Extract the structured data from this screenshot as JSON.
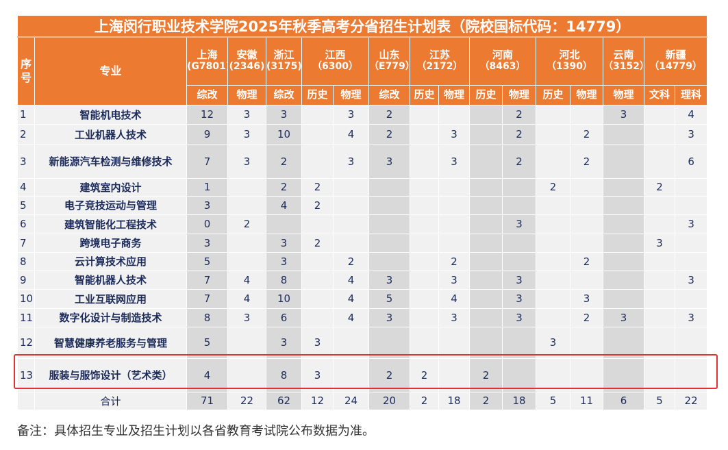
{
  "title": "上海闵行职业技术学院2025年秋季高考分省招生计划表（院校国标代码：14779）",
  "headers": {
    "index": "序号",
    "major": "专业"
  },
  "provinces": [
    {
      "name": "上海",
      "code": "(G7801)",
      "subjects": [
        "综改"
      ]
    },
    {
      "name": "安徽",
      "code": "(2346)",
      "subjects": [
        "物理"
      ]
    },
    {
      "name": "浙江",
      "code": "(3175)",
      "subjects": [
        "综改"
      ]
    },
    {
      "name": "江西",
      "code": "（6300）",
      "subjects": [
        "历史",
        "物理"
      ]
    },
    {
      "name": "山东",
      "code": "（E779）",
      "subjects": [
        "综改"
      ]
    },
    {
      "name": "江苏",
      "code": "（2172）",
      "subjects": [
        "历史",
        "物理"
      ]
    },
    {
      "name": "河南",
      "code": "（8463）",
      "subjects": [
        "历史",
        "物理"
      ]
    },
    {
      "name": "河北",
      "code": "（1390）",
      "subjects": [
        "历史",
        "物理"
      ]
    },
    {
      "name": "云南",
      "code": "（3152）",
      "subjects": [
        "物理"
      ]
    },
    {
      "name": "新疆",
      "code": "（14779）",
      "subjects": [
        "文科",
        "理科"
      ]
    }
  ],
  "rows": [
    {
      "no": "1",
      "major": "智能机电技术",
      "values": [
        "12",
        "3",
        "3",
        "",
        "3",
        "2",
        "",
        "",
        "",
        "2",
        "",
        "",
        "3",
        "",
        "4"
      ]
    },
    {
      "no": "2",
      "major": "工业机器人技术",
      "values": [
        "9",
        "3",
        "10",
        "",
        "4",
        "2",
        "",
        "3",
        "",
        "2",
        "",
        "2",
        "",
        "",
        "3"
      ]
    },
    {
      "no": "3",
      "major": "新能源汽车检测与维修技术",
      "values": [
        "7",
        "3",
        "2",
        "",
        "3",
        "3",
        "",
        "3",
        "",
        "2",
        "",
        "2",
        "",
        "",
        "6"
      ]
    },
    {
      "no": "4",
      "major": "建筑室内设计",
      "values": [
        "1",
        "",
        "2",
        "2",
        "",
        "",
        "",
        "",
        "",
        "",
        "2",
        "",
        "",
        "2",
        ""
      ]
    },
    {
      "no": "5",
      "major": "电子竞技运动与管理",
      "values": [
        "3",
        "",
        "4",
        "2",
        "",
        "",
        "",
        "",
        "",
        "",
        "",
        "",
        "",
        "",
        ""
      ]
    },
    {
      "no": "6",
      "major": "建筑智能化工程技术",
      "values": [
        "0",
        "2",
        "",
        "",
        "",
        "",
        "",
        "",
        "",
        "3",
        "",
        "",
        "",
        "",
        "3"
      ]
    },
    {
      "no": "7",
      "major": "跨境电子商务",
      "values": [
        "3",
        "",
        "3",
        "2",
        "",
        "",
        "",
        "",
        "",
        "",
        "",
        "",
        "",
        "3",
        ""
      ]
    },
    {
      "no": "8",
      "major": "云计算技术应用",
      "values": [
        "5",
        "",
        "3",
        "",
        "2",
        "",
        "",
        "2",
        "",
        "",
        "",
        "2",
        "",
        "",
        ""
      ]
    },
    {
      "no": "9",
      "major": "智能机器人技术",
      "values": [
        "7",
        "4",
        "8",
        "",
        "4",
        "3",
        "",
        "3",
        "",
        "3",
        "",
        "",
        "",
        "",
        "3"
      ]
    },
    {
      "no": "10",
      "major": "工业互联网应用",
      "values": [
        "7",
        "4",
        "10",
        "",
        "4",
        "5",
        "",
        "4",
        "",
        "3",
        "",
        "3",
        "",
        "",
        ""
      ]
    },
    {
      "no": "11",
      "major": "数字化设计与制造技术",
      "values": [
        "8",
        "3",
        "6",
        "",
        "4",
        "3",
        "",
        "3",
        "",
        "3",
        "",
        "2",
        "3",
        "",
        "3"
      ]
    },
    {
      "no": "12",
      "major": "智慧健康养老服务与管理",
      "values": [
        "5",
        "",
        "3",
        "3",
        "",
        "",
        "",
        "",
        "",
        "",
        "3",
        "",
        "",
        "",
        ""
      ]
    },
    {
      "no": "13",
      "major": "服装与服饰设计（艺术类）",
      "values": [
        "4",
        "",
        "8",
        "3",
        "",
        "2",
        "2",
        "",
        "2",
        "",
        "",
        "",
        "",
        "",
        ""
      ]
    }
  ],
  "total": {
    "label": "合计",
    "values": [
      "71",
      "22",
      "62",
      "12",
      "24",
      "20",
      "2",
      "18",
      "2",
      "18",
      "5",
      "11",
      "6",
      "5",
      "22"
    ]
  },
  "note": "备注：具体招生专业及招生计划以各省教育考试院公布数据为准。",
  "colors": {
    "header": "#ec7a30",
    "shaded": "#d9d9d9",
    "light": "#f1f1f1",
    "highlight": "#e53030",
    "text": "#1c2b5a"
  }
}
